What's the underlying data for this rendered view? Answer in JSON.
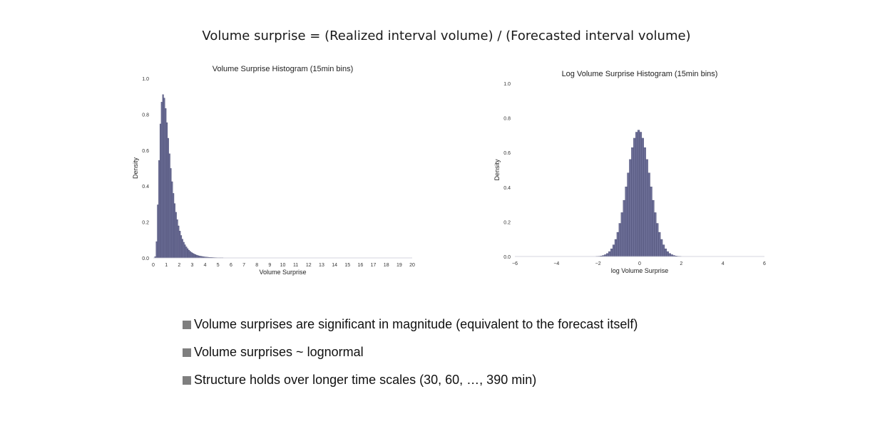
{
  "slide": {
    "title": "Volume surprise = (Realized interval volume) / (Forecasted interval volume)"
  },
  "bullets": [
    "Volume surprises are significant in magnitude (equivalent to the forecast itself)",
    "Volume surprises ~ lognormal",
    "Structure holds over longer time scales (30, 60, …, 390 min)"
  ],
  "colors": {
    "bar_fill": "#6b6d95",
    "bar_edge": "#3b3d66",
    "bullet_square": "#7f7f7f"
  },
  "chart_data": [
    {
      "type": "bar",
      "title": "Volume Surprise Histogram (15min bins)",
      "xlabel": "Volume Surprise",
      "ylabel": "Density",
      "xlim": [
        0,
        20
      ],
      "ylim": [
        0,
        1.0
      ],
      "xticks": [
        0,
        1,
        2,
        3,
        4,
        5,
        6,
        7,
        8,
        9,
        10,
        11,
        12,
        13,
        14,
        15,
        16,
        17,
        18,
        19,
        20
      ],
      "yticks": [
        0.0,
        0.2,
        0.4,
        0.6,
        0.8,
        1.0
      ],
      "ytick_labels": [
        "0.0",
        "0.2",
        "0.4",
        "0.6",
        "0.8",
        "1.0"
      ],
      "distribution": "lognormal",
      "params": {
        "mu": 0.0,
        "sigma": 0.52,
        "peak_density": 0.91,
        "peak_x": 0.8
      },
      "bin_width": 0.1,
      "grid": false,
      "legend": "none"
    },
    {
      "type": "bar",
      "title": "Log Volume Surprise Histogram (15min bins)",
      "xlabel": "log Volume Surprise",
      "ylabel": "Density",
      "xlim": [
        -6,
        6
      ],
      "ylim": [
        0,
        1.0
      ],
      "xticks": [
        -6,
        -4,
        -2,
        0,
        2,
        4,
        6
      ],
      "xtick_labels": [
        "−6",
        "−4",
        "−2",
        "0",
        "2",
        "4",
        "6"
      ],
      "yticks": [
        0.0,
        0.2,
        0.4,
        0.6,
        0.8,
        1.0
      ],
      "ytick_labels": [
        "0.0",
        "0.2",
        "0.4",
        "0.6",
        "0.8",
        "1.0"
      ],
      "distribution": "normal",
      "params": {
        "mu": -0.05,
        "sigma": 0.55,
        "peak_density": 0.73
      },
      "bin_width": 0.1,
      "grid": false,
      "legend": "none"
    }
  ]
}
